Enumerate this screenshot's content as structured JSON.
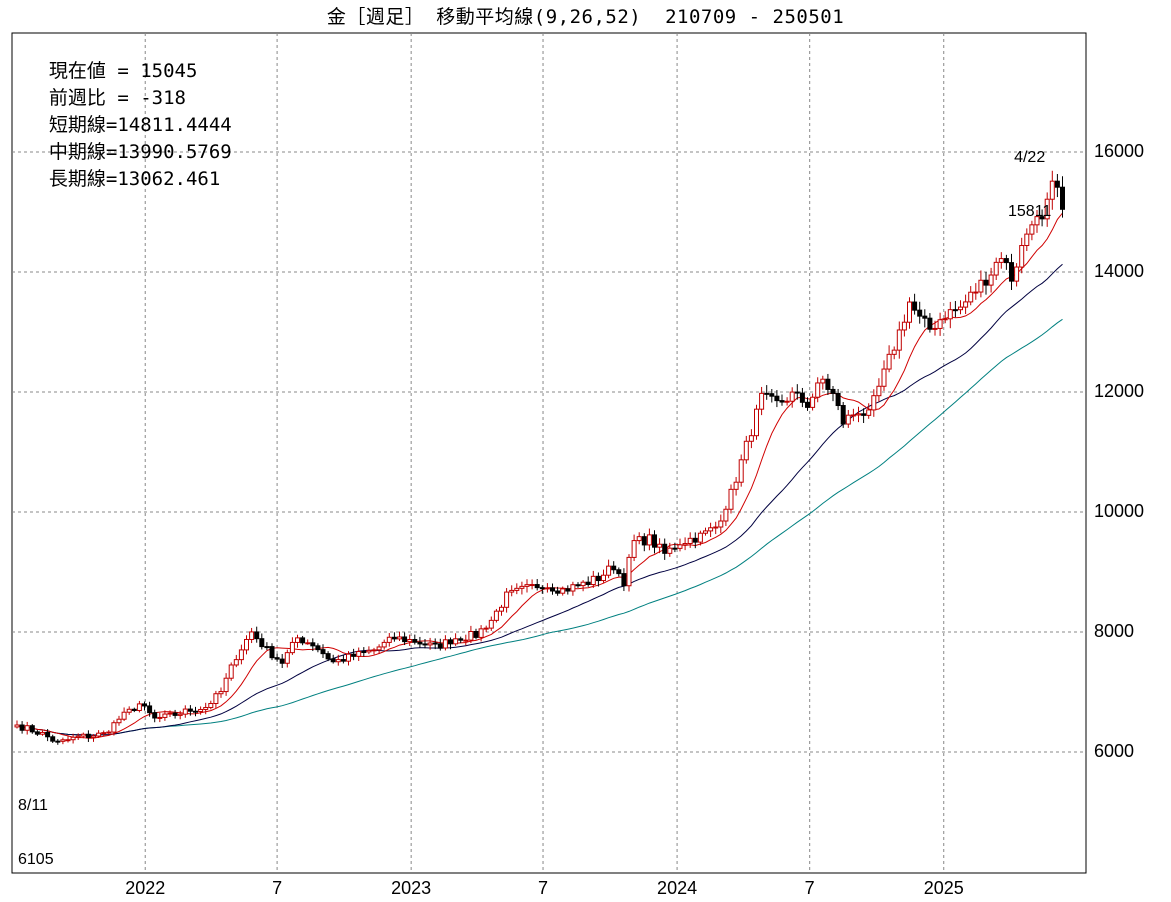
{
  "header": {
    "title": "金［週足］ 移動平均線(9,26,52)  210709 - 250501"
  },
  "info": {
    "current": "現在値 = 15045",
    "change": "前週比 = -318",
    "short_ma": "短期線=14811.4444",
    "mid_ma": "中期線=13990.5769",
    "long_ma": "長期線=13062.461"
  },
  "annotations": {
    "high_date": "4/22",
    "high_value": "15811",
    "low_date": "8/11",
    "low_value": "6105"
  },
  "chart_data": {
    "type": "candlestick",
    "title": "金［週足］ 移動平均線(9,26,52)  210709 - 250501",
    "period": [
      "210709",
      "250501"
    ],
    "ylim": [
      4000,
      17000
    ],
    "yticks": [
      6000,
      8000,
      10000,
      12000,
      14000,
      16000
    ],
    "ytick_labels": [
      "6000",
      "8000",
      "10000",
      "12000",
      "14000",
      "16000"
    ],
    "xticks": [
      {
        "label": "2022",
        "date": "2022-01"
      },
      {
        "label": "7",
        "date": "2022-07"
      },
      {
        "label": "2023",
        "date": "2023-01"
      },
      {
        "label": "7",
        "date": "2023-07"
      },
      {
        "label": "2024",
        "date": "2024-01"
      },
      {
        "label": "7",
        "date": "2024-07"
      },
      {
        "label": "2025",
        "date": "2025-01"
      }
    ],
    "grid": true,
    "colors": {
      "up": "#c00000",
      "down": "#000000",
      "short_ma": "#d00000",
      "mid_ma": "#000040",
      "long_ma": "#008080"
    },
    "price_path": [
      [
        0,
        6450
      ],
      [
        5,
        6300
      ],
      [
        8,
        6150
      ],
      [
        12,
        6250
      ],
      [
        17,
        6300
      ],
      [
        20,
        6550
      ],
      [
        24,
        6800
      ],
      [
        27,
        6550
      ],
      [
        30,
        6600
      ],
      [
        34,
        6700
      ],
      [
        37,
        6750
      ],
      [
        40,
        7000
      ],
      [
        43,
        7600
      ],
      [
        46,
        8000
      ],
      [
        49,
        7700
      ],
      [
        52,
        7500
      ],
      [
        55,
        7900
      ],
      [
        58,
        7800
      ],
      [
        62,
        7500
      ],
      [
        66,
        7600
      ],
      [
        70,
        7700
      ],
      [
        74,
        7900
      ],
      [
        78,
        7850
      ],
      [
        82,
        7750
      ],
      [
        86,
        7900
      ],
      [
        90,
        7950
      ],
      [
        93,
        8200
      ],
      [
        96,
        8600
      ],
      [
        99,
        8700
      ],
      [
        103,
        8800
      ],
      [
        107,
        8700
      ],
      [
        111,
        8800
      ],
      [
        114,
        8900
      ],
      [
        117,
        9100
      ],
      [
        119,
        8850
      ],
      [
        121,
        9500
      ],
      [
        124,
        9550
      ],
      [
        127,
        9300
      ],
      [
        130,
        9500
      ],
      [
        134,
        9600
      ],
      [
        137,
        9750
      ],
      [
        140,
        10300
      ],
      [
        143,
        11100
      ],
      [
        146,
        11900
      ],
      [
        149,
        11800
      ],
      [
        152,
        11950
      ],
      [
        155,
        11800
      ],
      [
        158,
        12200
      ],
      [
        160,
        11950
      ],
      [
        162,
        11500
      ],
      [
        165,
        11700
      ],
      [
        167,
        11600
      ],
      [
        170,
        12300
      ],
      [
        173,
        13000
      ],
      [
        175,
        13500
      ],
      [
        177,
        13200
      ],
      [
        179,
        13050
      ],
      [
        182,
        13300
      ],
      [
        185,
        13400
      ],
      [
        188,
        13700
      ],
      [
        191,
        14000
      ],
      [
        193,
        14300
      ],
      [
        195,
        13900
      ],
      [
        197,
        14400
      ],
      [
        199,
        14900
      ],
      [
        201,
        14800
      ],
      [
        203,
        15400
      ],
      [
        204,
        15363
      ],
      [
        205,
        15045
      ]
    ],
    "ma_short_end": 14811.4444,
    "ma_mid_end": 13990.5769,
    "ma_long_end": 13062.461,
    "high": {
      "date": "4/22",
      "value": 15811
    },
    "low": {
      "date": "8/11",
      "value": 6105
    }
  }
}
